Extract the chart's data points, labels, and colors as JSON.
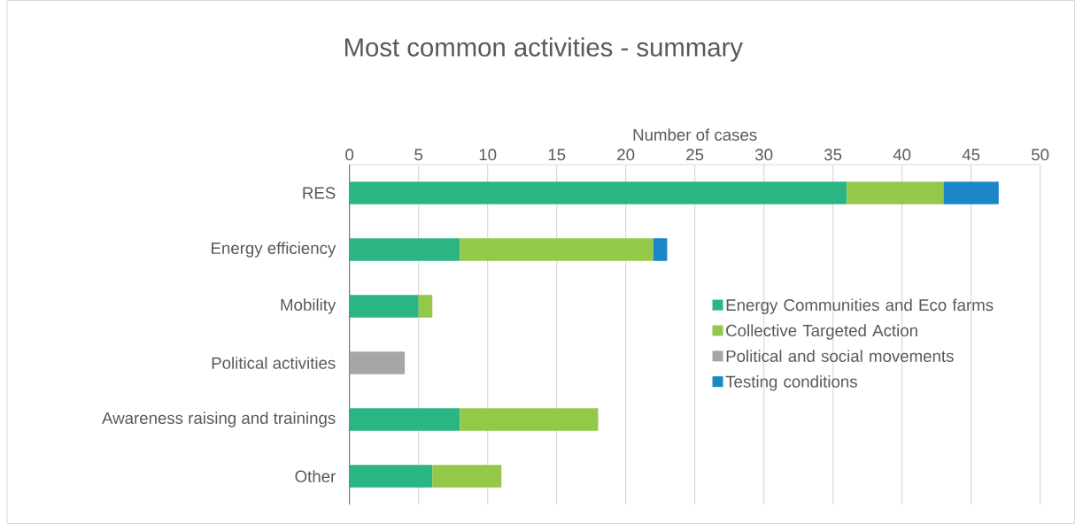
{
  "chart_data": {
    "type": "bar",
    "orientation": "horizontal",
    "stacked": true,
    "title": "Most common activities - summary",
    "xlabel": "Number of cases",
    "categories": [
      "RES",
      "Energy efficiency",
      "Mobility",
      "Political activities",
      "Awareness raising and trainings",
      "Other"
    ],
    "series": [
      {
        "name": "Energy Communities and Eco farms",
        "color": "#2bb583",
        "values": [
          36,
          8,
          5,
          null,
          8,
          6
        ]
      },
      {
        "name": "Collective Targeted Action",
        "color": "#94c848",
        "values": [
          7,
          14,
          1,
          null,
          10,
          5
        ]
      },
      {
        "name": "Political and social movements",
        "color": "#a6a6a6",
        "values": [
          null,
          null,
          null,
          4,
          null,
          null
        ]
      },
      {
        "name": "Testing conditions",
        "color": "#1b87c8",
        "values": [
          4,
          1,
          null,
          null,
          null,
          null
        ]
      }
    ],
    "xlim": [
      0,
      50
    ],
    "xticks": [
      0,
      5,
      10,
      15,
      20,
      25,
      30,
      35,
      40,
      45,
      50
    ],
    "grid": "x",
    "legend": "right"
  }
}
